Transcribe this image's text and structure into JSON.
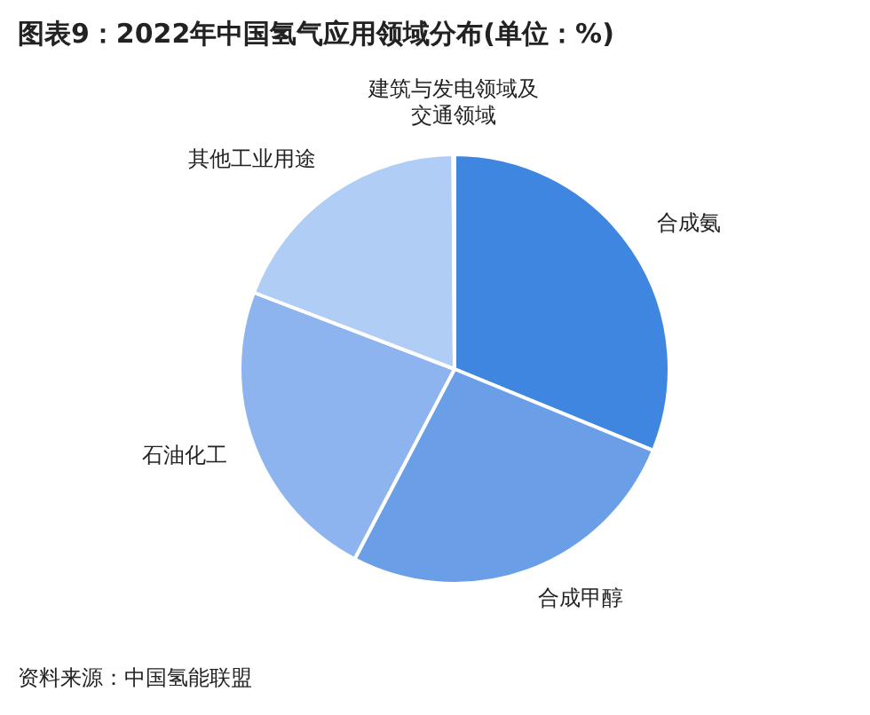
{
  "chart_data": {
    "type": "pie",
    "title": "图表9：2022年中国氢气应用领域分布(单位：%)",
    "categories": [
      "合成氨",
      "合成甲醇",
      "石油化工",
      "其他工业用途",
      "建筑与发电领域及交通领域"
    ],
    "values": [
      31.2,
      26.5,
      23.1,
      19.1,
      0.1
    ],
    "colors": [
      "#3f86e0",
      "#6a9fe8",
      "#8db4ee",
      "#b0cdf5",
      "#c8dcf7"
    ],
    "annotations": [
      "资料来源：中国氢能联盟"
    ]
  }
}
